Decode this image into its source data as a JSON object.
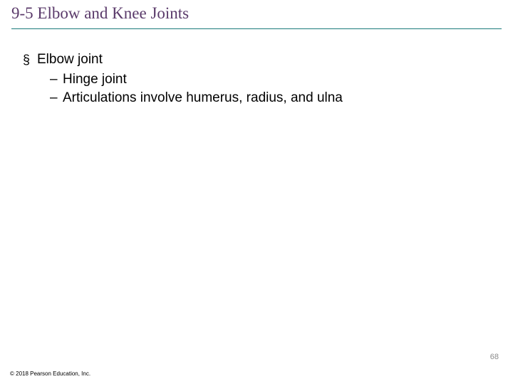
{
  "title": "9-5 Elbow and Knee Joints",
  "title_color": "#5a3a6a",
  "rule_color": "#1a7a7a",
  "body": {
    "lvl1": "Elbow joint",
    "lvl2_a": "Hinge joint",
    "lvl2_b": "Articulations involve humerus, radius, and ulna"
  },
  "page_number": "68",
  "copyright": "© 2018 Pearson Education, Inc."
}
